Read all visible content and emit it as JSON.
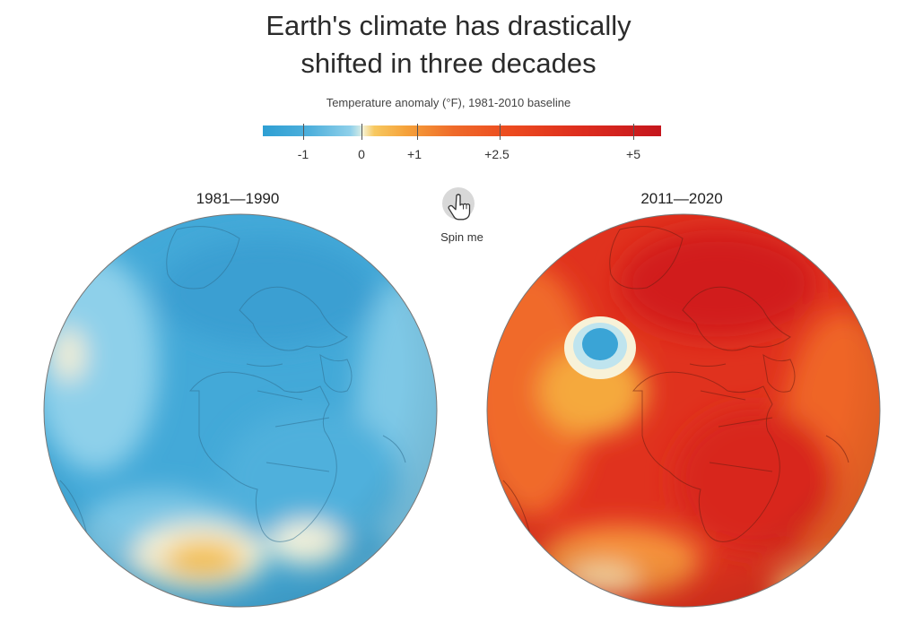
{
  "header": {
    "title_line1": "Earth's climate has drastically",
    "title_line2": "shifted in three decades",
    "subtitle": "Temperature anomaly (°F), 1981-2010 baseline"
  },
  "legend": {
    "ticks": [
      {
        "label": "-1",
        "value": -1
      },
      {
        "label": "0",
        "value": 0
      },
      {
        "label": "+1",
        "value": 1
      },
      {
        "label": "+2.5",
        "value": 2.5
      },
      {
        "label": "+5",
        "value": 5
      }
    ],
    "colors": {
      "cold": "#2e9fd3",
      "cool": "#8fd0ea",
      "neutral": "#f5f4d8",
      "warm": "#f5b13b",
      "hot": "#ec4b1f",
      "hottest": "#c5161d"
    }
  },
  "globes": {
    "left": {
      "label": "1981—1990"
    },
    "right": {
      "label": "2011—2020"
    }
  },
  "controls": {
    "spin_label": "Spin me",
    "spin_icon": "hand-pointer-icon"
  }
}
